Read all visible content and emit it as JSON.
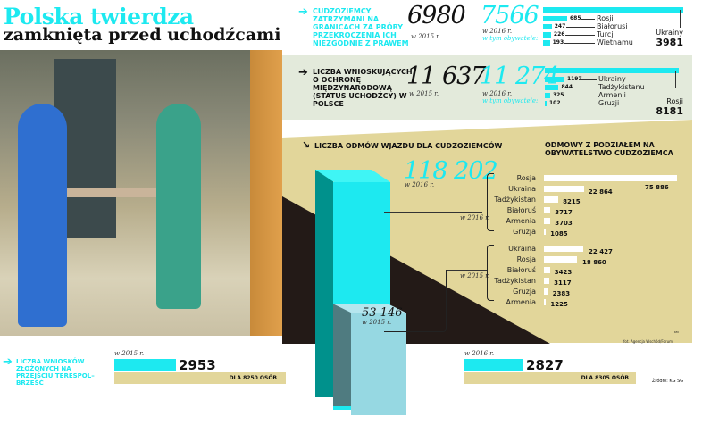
{
  "header": {
    "title": "Polska twierdza",
    "subtitle": "zamknięta przed uchodźcami"
  },
  "colors": {
    "accent": "#1de9f0",
    "beige": "#e2d69a",
    "light_band": "#e3eadb",
    "dark": "#231a17"
  },
  "section1": {
    "label": "CUDZOZIEMCY ZATRZYMANI NA GRANICACH ZA PRÓBY PRZEKROCZENIA ICH NIEZGODNIE Z PRAWEM",
    "value_2015": "6980",
    "year_2015": "w 2015 r.",
    "value_2016": "7566",
    "year_2016": "w 2016 r.",
    "of_which": "w tym obywatele:",
    "total_label": "Ukrainy",
    "total_value": "3981"
  },
  "section2": {
    "label": "LICZBA WNIOSKUJĄCYCH O OCHRONĘ MIĘDZYNARODOWĄ (STATUS UCHODŹCY) W POLSCE",
    "value_2015": "11 637",
    "year_2015": "w 2015 r.",
    "value_2016": "11 274",
    "year_2016": "w 2016 r.",
    "of_which": "w tym obywatele:",
    "total_label": "Rosji",
    "total_value": "8181"
  },
  "section3": {
    "label": "LICZBA ODMÓW WJAZDU DLA CUDZOZIEMCÓW",
    "value_2016": "118 202",
    "year_2016": "w 2016 r.",
    "value_2015": "53 146",
    "year_2015": "w 2015 r.",
    "breakdown_title": "ODMOWY Z PODZIAŁEM NA OBYWATELSTWO CUDZOZIEMCA",
    "bracket_2016": "w 2016 r.",
    "bracket_2015": "w 2015 r.",
    "initials": "KM",
    "photo_credit": "fot. Agencja Wschód/Forum"
  },
  "section4": {
    "label": "LICZBA WNIOSKÓW ZŁOŻONYCH NA PRZEJŚCIU TERESPOL–BRZEŚĆ",
    "year_2015": "w 2015 r.",
    "value_2015": "2953",
    "persons_2015": "DLA 8250 OSÓB",
    "year_2016": "w 2016 r.",
    "value_2016": "2827",
    "persons_2016": "DLA 8305 OSÓB",
    "source": "Źródło: KG SG"
  },
  "chart_data": [
    {
      "type": "bar",
      "orientation": "horizontal",
      "title": "w tym obywatele (zatrzymani, 2016)",
      "categories": [
        "Ukrainy",
        "Rosji",
        "Białorusi",
        "Turcji",
        "Wietnamu"
      ],
      "values": [
        3981,
        685,
        247,
        226,
        193
      ]
    },
    {
      "type": "bar",
      "orientation": "horizontal",
      "title": "w tym obywatele (wnioskujący, 2016)",
      "categories": [
        "Rosji",
        "Ukrainy",
        "Tadżykistanu",
        "Armenii",
        "Gruzji"
      ],
      "values": [
        8181,
        1197,
        844,
        325,
        102
      ]
    },
    {
      "type": "bar",
      "title": "LICZBA ODMÓW WJAZDU DLA CUDZOZIEMCÓW",
      "categories": [
        "w 2016 r.",
        "w 2015 r."
      ],
      "values": [
        118202,
        53146
      ]
    },
    {
      "type": "bar",
      "orientation": "horizontal",
      "title": "w 2016 r.",
      "categories": [
        "Rosja",
        "Ukraina",
        "Tadżykistan",
        "Białoruś",
        "Armenia",
        "Gruzja"
      ],
      "values": [
        75886,
        22864,
        8215,
        3717,
        3703,
        1085
      ],
      "labels": [
        "75 886",
        "22 864",
        "8215",
        "3717",
        "3703",
        "1085"
      ]
    },
    {
      "type": "bar",
      "orientation": "horizontal",
      "title": "w 2015 r.",
      "categories": [
        "Ukraina",
        "Rosja",
        "Białoruś",
        "Tadżykistan",
        "Gruzja",
        "Armenia"
      ],
      "values": [
        22427,
        18860,
        3423,
        3117,
        2383,
        1225
      ],
      "labels": [
        "22 427",
        "18 860",
        "3423",
        "3117",
        "2383",
        "1225"
      ]
    },
    {
      "type": "bar",
      "orientation": "horizontal",
      "title": "LICZBA WNIOSKÓW ZŁOŻONYCH NA PRZEJŚCIU TERESPOL–BRZEŚĆ",
      "categories": [
        "w 2015 r.",
        "w 2016 r."
      ],
      "values": [
        2953,
        2827
      ]
    }
  ]
}
